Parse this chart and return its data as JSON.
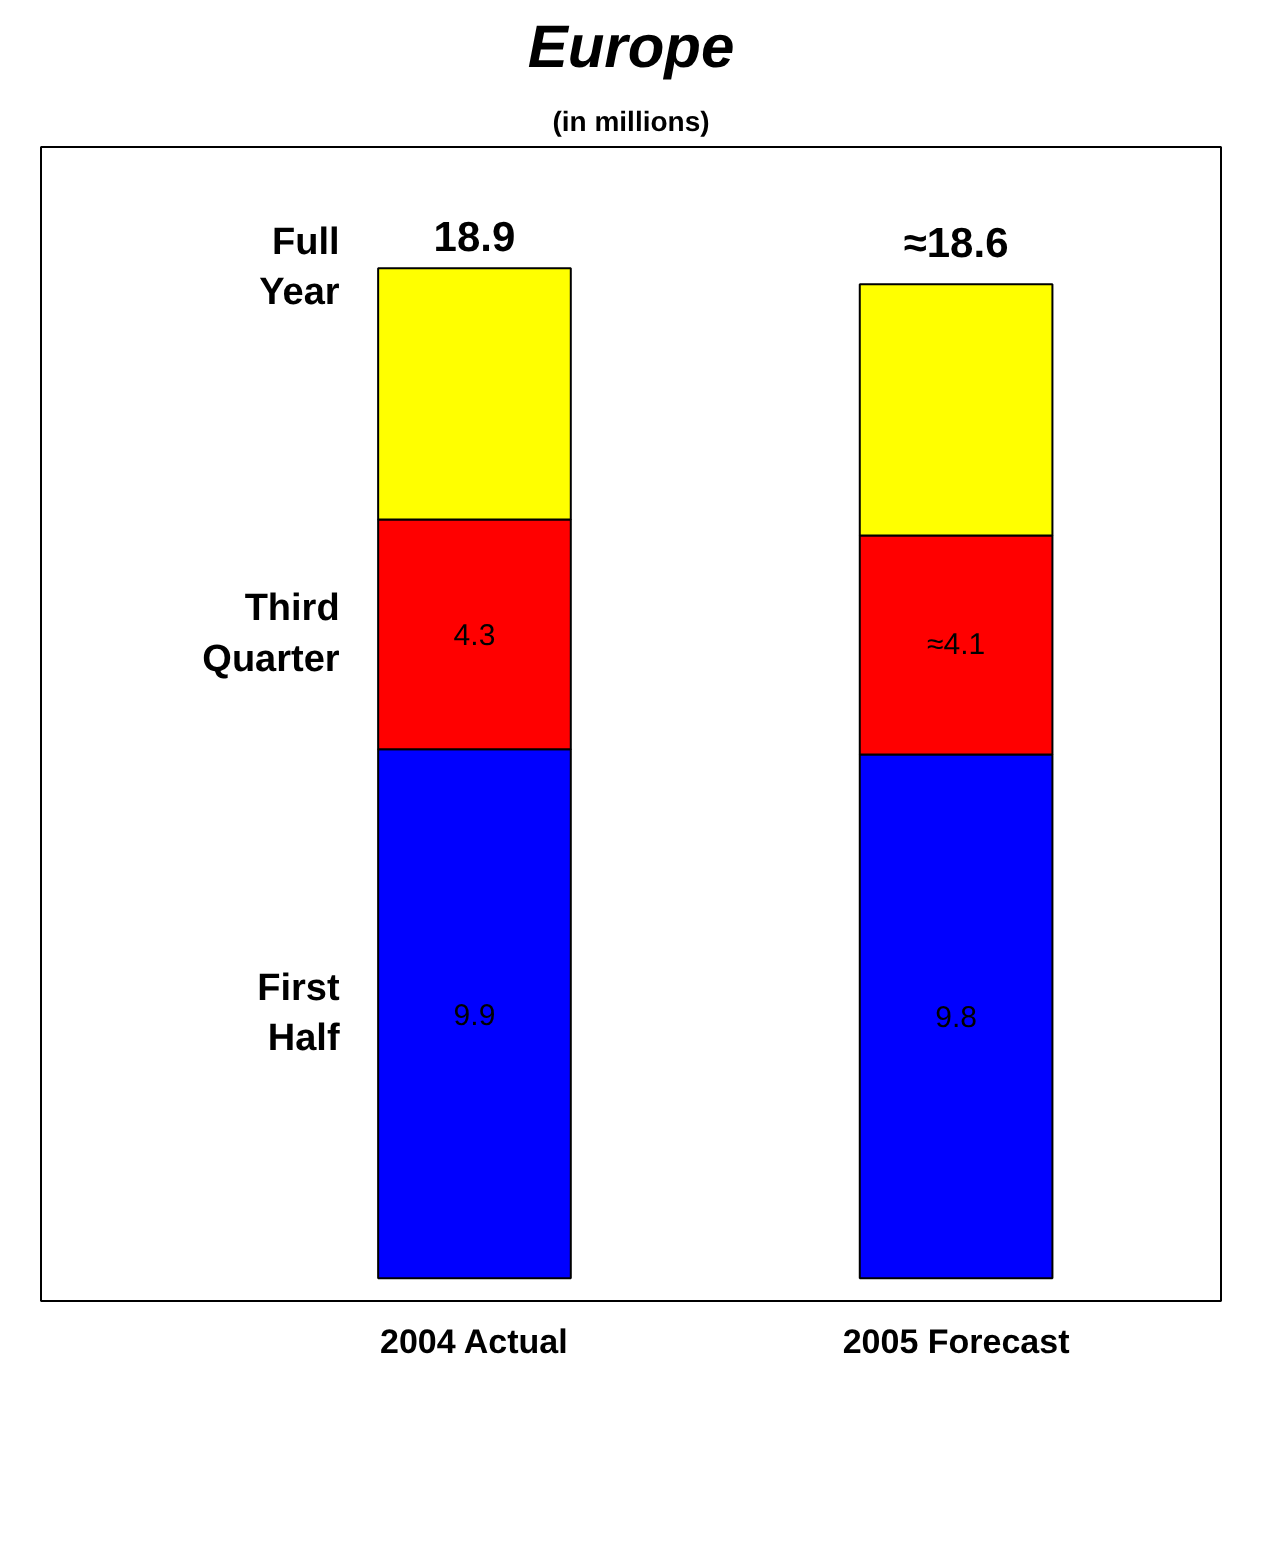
{
  "chart_data": {
    "type": "bar",
    "title": "Europe",
    "subtitle": "(in millions)",
    "categories": [
      "2004 Actual",
      "2005 Forecast"
    ],
    "stacked": true,
    "legend": false,
    "grid": false,
    "series": [
      {
        "name": "First Half",
        "color": "#0000ff",
        "values": [
          9.9,
          9.8
        ],
        "value_labels": [
          "9.9",
          "9.8"
        ]
      },
      {
        "name": "Third Quarter",
        "color": "#ff0000",
        "values": [
          4.3,
          4.1
        ],
        "value_labels": [
          "4.3",
          "≈4.1"
        ]
      },
      {
        "color": "#ffff00",
        "values": [
          4.7,
          4.7
        ]
      }
    ],
    "totals": [
      "18.9",
      "≈18.6"
    ],
    "annotations": [
      "Full Year"
    ]
  }
}
